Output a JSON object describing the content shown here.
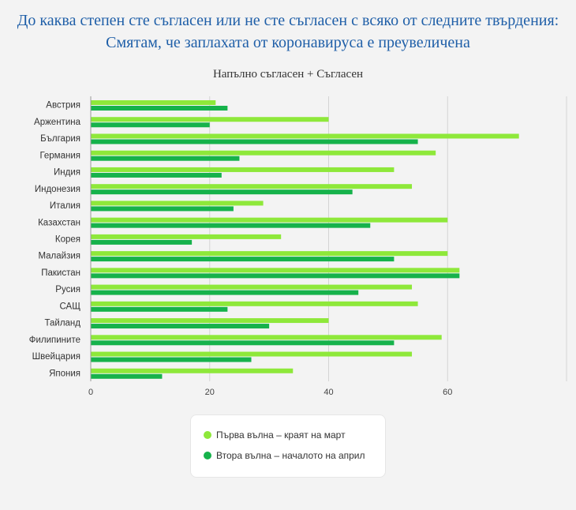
{
  "title": "До каква степен сте съгласен или не сте съгласен с всяко от следните твърдения: Смятам, че заплахата от коронавируса е преувеличена",
  "colors": {
    "series1": "#8ee83a",
    "series2": "#16b24b",
    "title": "#1f5fa8"
  },
  "chart_data": {
    "type": "bar",
    "orientation": "horizontal",
    "title": "До каква степен сте съгласен или не сте съгласен с всяко от следните твърдения: Смятам, че заплахата от коронавируса е преувеличена",
    "subtitle": "Напълно съгласен + Съгласен",
    "categories": [
      "Австрия",
      "Аржентина",
      "България",
      "Германия",
      "Индия",
      "Индонезия",
      "Италия",
      "Казахстан",
      "Корея",
      "Малайзия",
      "Пакистан",
      "Русия",
      "САЩ",
      "Тайланд",
      "Филипините",
      "Швейцария",
      "Япония"
    ],
    "series": [
      {
        "name": "Първа вълна – краят на март",
        "values": [
          21,
          40,
          72,
          58,
          51,
          54,
          29,
          60,
          32,
          60,
          62,
          54,
          55,
          40,
          59,
          54,
          34
        ]
      },
      {
        "name": "Втора вълна – началото на април",
        "values": [
          23,
          20,
          55,
          25,
          22,
          44,
          24,
          47,
          17,
          51,
          62,
          45,
          23,
          30,
          51,
          27,
          12
        ]
      }
    ],
    "xticks": [
      0,
      20,
      40,
      60
    ],
    "xlim": [
      0,
      80
    ],
    "grid": true,
    "legend_position": "bottom"
  }
}
